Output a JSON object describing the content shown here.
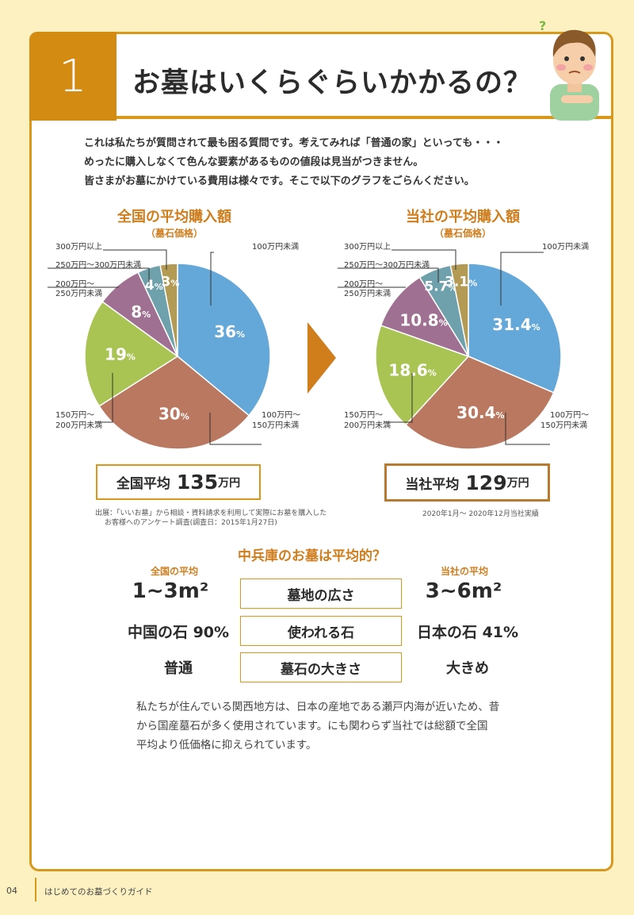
{
  "header": {
    "section_number": "1",
    "title": "お墓はいくらぐらいかかるの？"
  },
  "intro": [
    "これは私たちが質問されて最も困る質問です。考えてみれば「普通の家」といっても・・・",
    "めったに購入しなくて色んな要素があるものの値段は見当がつきません。",
    "皆さまがお墓にかけている費用は様々です。そこで以下のグラフをごらんください。"
  ],
  "chart_data": [
    {
      "type": "pie",
      "title": "全国の平均購入額",
      "subtitle": "（墓石価格）",
      "categories": [
        "100万円未満",
        "100万円〜150万円未満",
        "150万円〜200万円未満",
        "200万円〜250万円未満",
        "250万円〜300万円未満",
        "300万円以上"
      ],
      "values": [
        36,
        30,
        19,
        8,
        4,
        3
      ],
      "value_labels": [
        "36",
        "30",
        "19",
        "8",
        "4",
        "3"
      ],
      "unit": "%",
      "colors": [
        "#64a7d9",
        "#b9785f",
        "#a9c453",
        "#a07092",
        "#6ea1ac",
        "#b39b55"
      ]
    },
    {
      "type": "pie",
      "title": "当社の平均購入額",
      "subtitle": "（墓石価格）",
      "categories": [
        "100万円未満",
        "100万円〜150万円未満",
        "150万円〜200万円未満",
        "200万円〜250万円未満",
        "250万円〜300万円未満",
        "300万円以上"
      ],
      "values": [
        31.4,
        30.4,
        18.6,
        10.8,
        5.7,
        3.1
      ],
      "value_labels": [
        "31.4",
        "30.4",
        "18.6",
        "10.8",
        "5.7",
        "3.1"
      ],
      "unit": "%",
      "colors": [
        "#64a7d9",
        "#b9785f",
        "#a9c453",
        "#a07092",
        "#6ea1ac",
        "#b39b55"
      ]
    }
  ],
  "legend_labels": {
    "l300": "300万円以上",
    "l250": "250万円〜300万円未満",
    "l200a": "200万円〜",
    "l200b": "250万円未満",
    "l150a": "150万円〜",
    "l150b": "200万円未満",
    "l100": "100万円未満",
    "l100a": "100万円〜",
    "l100b": "150万円未満"
  },
  "averages": {
    "national": {
      "label": "全国平均",
      "value": "135",
      "unit": "万円"
    },
    "company": {
      "label": "当社平均",
      "value": "129",
      "unit": "万円"
    }
  },
  "notes": {
    "national_line1": "出展：「いいお墓」から相談・資料請求を利用して実際にお墓を購入した",
    "national_line2": "お客様へのアンケート調査(調査日：2015年1月27日)",
    "company": "2020年1月〜 2020年12月当社実績"
  },
  "comparison": {
    "title": "中兵庫のお墓は平均的？",
    "national_head": "全国の平均",
    "company_head": "当社の平均",
    "rows": [
      {
        "label": "墓地の広さ",
        "national": "1~3m²",
        "company": "3~6m²"
      },
      {
        "label": "使われる石",
        "national": "中国の石 90%",
        "company": "日本の石 41%"
      },
      {
        "label": "墓石の大きさ",
        "national": "普通",
        "company": "大きめ"
      }
    ]
  },
  "outro": [
    "私たちが住んでいる関西地方は、日本の産地である瀬戸内海が近いため、昔",
    "から国産墓石が多く使用されています。にも関わらず当社では総額で全国",
    "平均より低価格に抑えられています。"
  ],
  "footer": {
    "page": "04",
    "text": "はじめてのお墓づくりガイド"
  }
}
